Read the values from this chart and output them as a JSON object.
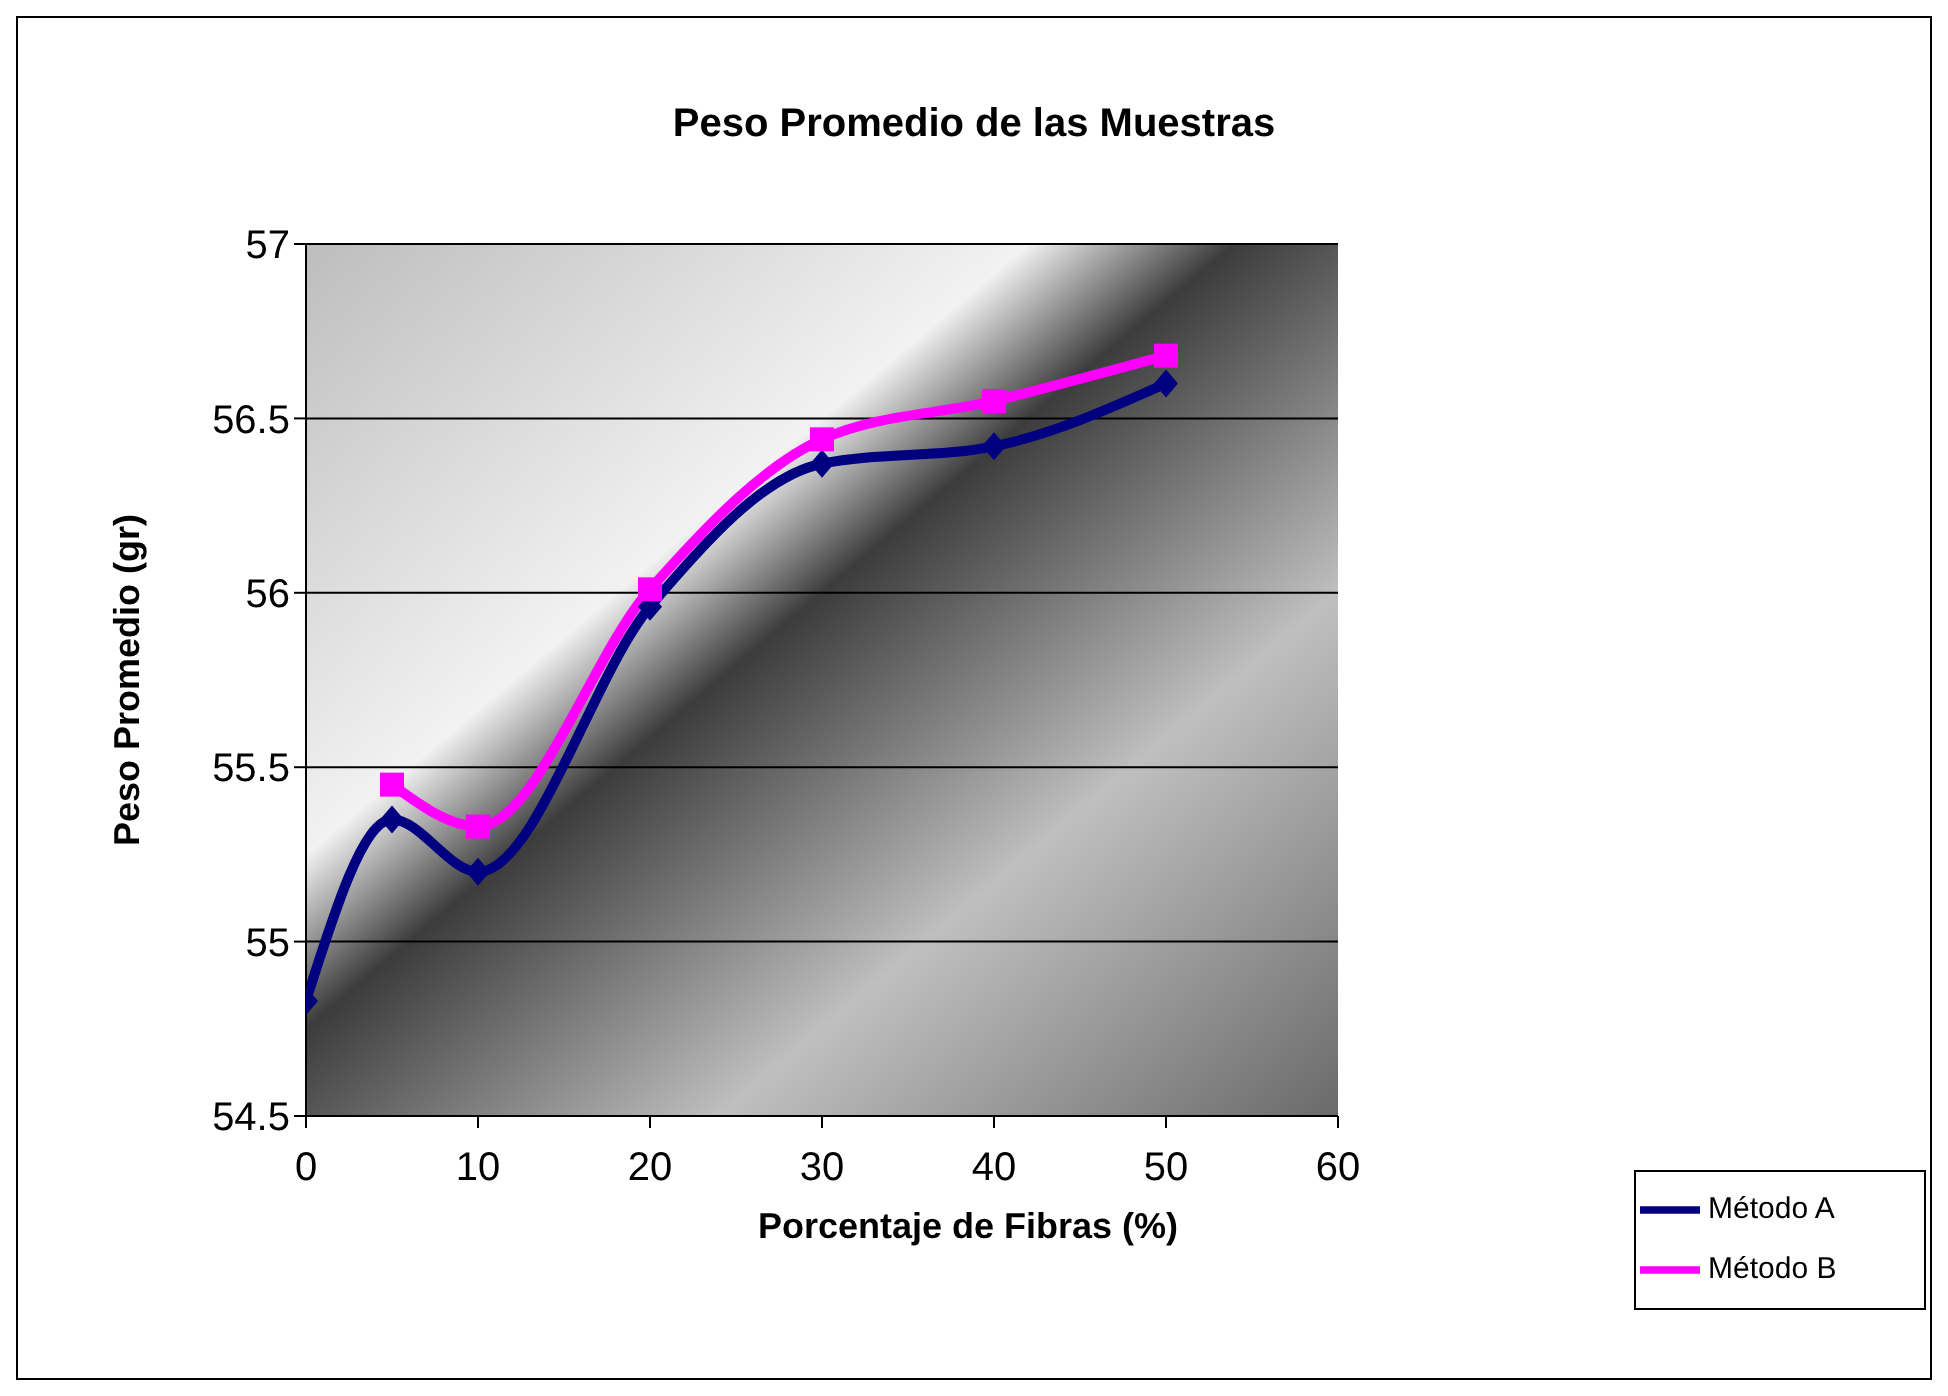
{
  "chart_data": {
    "type": "line",
    "title": "Peso Promedio de las Muestras",
    "xlabel": "Porcentaje de Fibras (%)",
    "ylabel": "Peso Promedio (gr)",
    "series": [
      {
        "name": "Método A",
        "color": "#000080",
        "marker": "diamond",
        "x": [
          0,
          5,
          10,
          20,
          30,
          40,
          50
        ],
        "values": [
          54.83,
          55.35,
          55.2,
          55.96,
          56.37,
          56.42,
          56.6
        ]
      },
      {
        "name": "Método B",
        "color": "#ff00ff",
        "marker": "square",
        "x": [
          5,
          10,
          20,
          30,
          40,
          50
        ],
        "values": [
          55.45,
          55.33,
          56.01,
          56.44,
          56.55,
          56.68
        ]
      }
    ],
    "xlim": [
      0,
      60
    ],
    "xticks": [
      0,
      10,
      20,
      30,
      40,
      50,
      60
    ],
    "ylim": [
      54.5,
      57
    ],
    "yticks": [
      54.5,
      55,
      55.5,
      56,
      56.5,
      57
    ],
    "grid": "y",
    "legend": "bottom right",
    "line_style": "solid"
  }
}
